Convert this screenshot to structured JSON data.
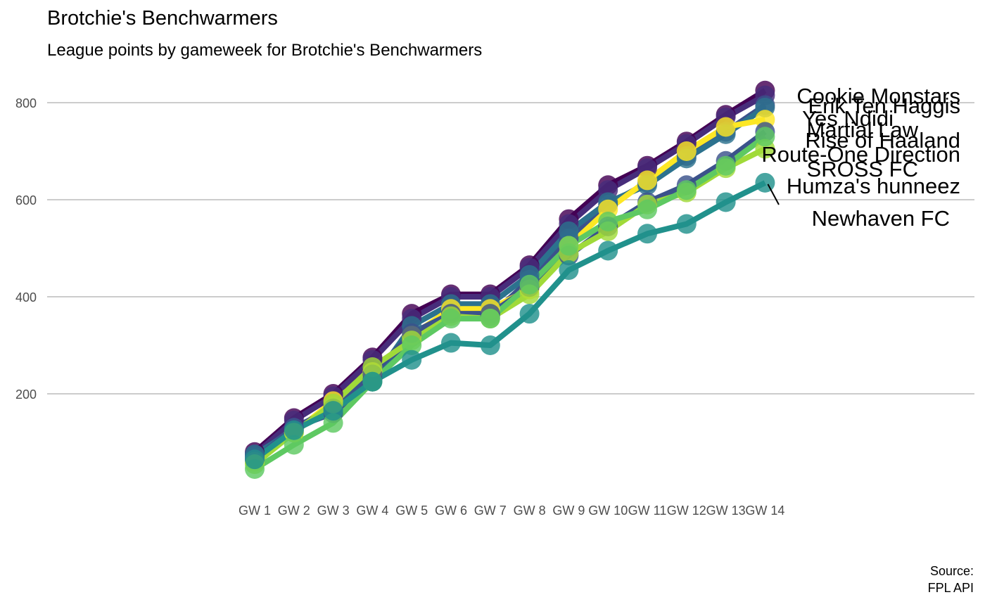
{
  "chart_data": {
    "type": "line",
    "title": "Brotchie's Benchwarmers",
    "subtitle": "League points by gameweek for Brotchie's Benchwarmers",
    "caption_icon": " ",
    "caption_lines": [
      "Source:",
      "FPL API"
    ],
    "xlabel": "",
    "ylabel": "",
    "categories": [
      "GW 1",
      "GW 2",
      "GW 3",
      "GW 4",
      "GW 5",
      "GW 6",
      "GW 7",
      "GW 8",
      "GW 9",
      "GW 10",
      "GW 11",
      "GW 12",
      "GW 13",
      "GW 14"
    ],
    "y_ticks": [
      200,
      400,
      600,
      800
    ],
    "ylim": [
      0,
      900
    ],
    "grid": "horizontal",
    "legend": "direct labels at line ends",
    "series": [
      {
        "name": "Cookie Monstars",
        "color": "#440154",
        "values": [
          80,
          150,
          200,
          275,
          365,
          405,
          405,
          465,
          560,
          630,
          670,
          720,
          775,
          825
        ]
      },
      {
        "name": "Erik Ten Haggis",
        "color": "#472d7b",
        "values": [
          75,
          145,
          195,
          270,
          355,
          400,
          400,
          460,
          550,
          620,
          665,
          715,
          770,
          815
        ]
      },
      {
        "name": "Yes Ndidi",
        "color": "#3b528b",
        "values": [
          70,
          130,
          160,
          230,
          320,
          370,
          360,
          435,
          520,
          590,
          635,
          690,
          740,
          795
        ]
      },
      {
        "name": "Martial Law",
        "color": "#2c728e",
        "values": [
          75,
          125,
          175,
          225,
          340,
          385,
          385,
          445,
          535,
          595,
          630,
          685,
          735,
          790
        ]
      },
      {
        "name": "Rise of Haaland",
        "color": "#fde725",
        "values": [
          60,
          120,
          185,
          245,
          320,
          375,
          375,
          415,
          505,
          580,
          640,
          700,
          750,
          765
        ]
      },
      {
        "name": "Route-One Direction",
        "color": "#3b528b",
        "values": [
          65,
          130,
          170,
          240,
          325,
          365,
          365,
          420,
          485,
          545,
          595,
          630,
          680,
          740
        ]
      },
      {
        "name": "SROSS FC",
        "color": "#a0da39",
        "values": [
          55,
          120,
          180,
          255,
          310,
          360,
          355,
          405,
          490,
          535,
          590,
          615,
          665,
          705
        ]
      },
      {
        "name": "Humza's hunneez",
        "color": "#5ec962",
        "values": [
          45,
          95,
          140,
          225,
          300,
          355,
          355,
          425,
          505,
          555,
          580,
          620,
          670,
          730
        ]
      },
      {
        "name": "Newhaven FC",
        "color": "#21918c",
        "values": [
          65,
          125,
          165,
          225,
          270,
          305,
          300,
          365,
          455,
          495,
          530,
          550,
          595,
          635
        ]
      }
    ]
  }
}
